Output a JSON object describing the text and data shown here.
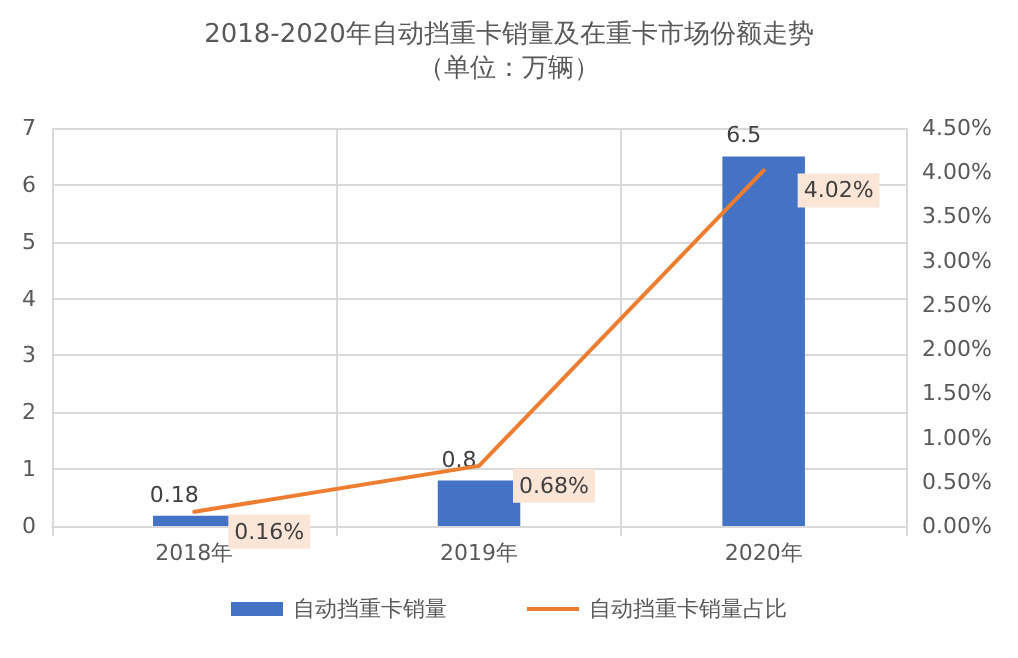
{
  "chart_data": {
    "type": "bar",
    "title": "2018-2020年自动挡重卡销量及在重卡市场份额走势",
    "subtitle": "（单位：万辆）",
    "categories": [
      "2018年",
      "2019年",
      "2020年"
    ],
    "series": [
      {
        "name": "自动挡重卡销量",
        "color": "#4472c4",
        "values": [
          0.18,
          0.8,
          6.5
        ],
        "value_labels": [
          "0.18",
          "0.8",
          "6.5"
        ]
      },
      {
        "name": "自动挡重卡销量占比",
        "type": "line",
        "axis": "y2",
        "color": "#ed7d31",
        "values": [
          0.16,
          0.68,
          4.02
        ],
        "value_labels": [
          "0.16%",
          "0.68%",
          "4.02%"
        ]
      }
    ],
    "ylim": [
      0,
      7
    ],
    "yticks": [
      0,
      1,
      2,
      3,
      4,
      5,
      6,
      7
    ],
    "y2lim": [
      0,
      4.5
    ],
    "y2ticks": [
      {
        "value": 0,
        "label": "0.00%"
      },
      {
        "value": 0.5,
        "label": "0.50%"
      },
      {
        "value": 1,
        "label": "1.00%"
      },
      {
        "value": 1.5,
        "label": "1.50%"
      },
      {
        "value": 2,
        "label": "2.00%"
      },
      {
        "value": 2.5,
        "label": "2.50%"
      },
      {
        "value": 3,
        "label": "3.00%"
      },
      {
        "value": 3.5,
        "label": "3.50%"
      },
      {
        "value": 4,
        "label": "4.00%"
      },
      {
        "value": 4.5,
        "label": "4.50%"
      }
    ],
    "grid": true,
    "legend": "bottom",
    "marker": "none",
    "line_style": "solid"
  }
}
